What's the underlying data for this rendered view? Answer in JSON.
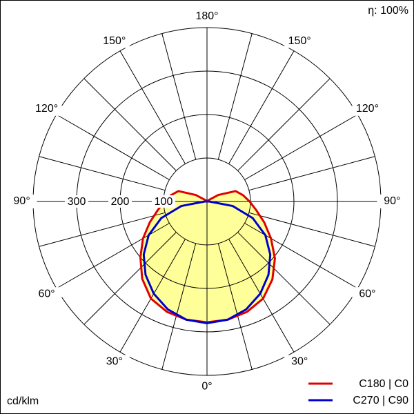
{
  "chart_data": {
    "type": "polar",
    "angles": [
      0,
      10,
      20,
      30,
      40,
      50,
      60,
      70,
      80,
      90,
      100,
      110,
      120,
      130,
      140,
      150,
      160,
      170,
      180
    ],
    "series": [
      {
        "name": "C180 | C0",
        "color": "#e00000",
        "values_left": [
          278,
          276,
          270,
          258,
          232,
          200,
          170,
          140,
          115,
          98,
          84,
          70,
          30,
          5,
          0,
          0,
          0,
          0,
          0
        ],
        "values_right": [
          278,
          276,
          270,
          258,
          234,
          204,
          170,
          140,
          115,
          98,
          84,
          70,
          30,
          5,
          0,
          0,
          0,
          0,
          0
        ]
      },
      {
        "name": "C270 | C90",
        "color": "#0000cc",
        "values_left": [
          280,
          276,
          264,
          245,
          220,
          190,
          155,
          112,
          60,
          5,
          0,
          0,
          0,
          0,
          0,
          0,
          0,
          0,
          0
        ],
        "values_right": [
          280,
          276,
          264,
          245,
          220,
          190,
          155,
          112,
          60,
          5,
          0,
          0,
          0,
          0,
          0,
          0,
          0,
          0,
          0
        ]
      }
    ],
    "fill_color": "#ffff99",
    "rlim": [
      0,
      400
    ],
    "rticks": [
      100,
      200,
      300
    ],
    "angle_gridlines": [
      0,
      15,
      30,
      45,
      60,
      75,
      90,
      105,
      120,
      135,
      150,
      165,
      180
    ],
    "angle_ticks": [
      {
        "value": 0,
        "label": "0°"
      },
      {
        "value": 30,
        "label": "30°"
      },
      {
        "value": 60,
        "label": "60°"
      },
      {
        "value": 90,
        "label": "90°"
      },
      {
        "value": 120,
        "label": "120°"
      },
      {
        "value": 150,
        "label": "150°"
      },
      {
        "value": 180,
        "label": "180°"
      }
    ],
    "efficiency_label": "η: 100%",
    "unit_label": "cd/klm"
  }
}
